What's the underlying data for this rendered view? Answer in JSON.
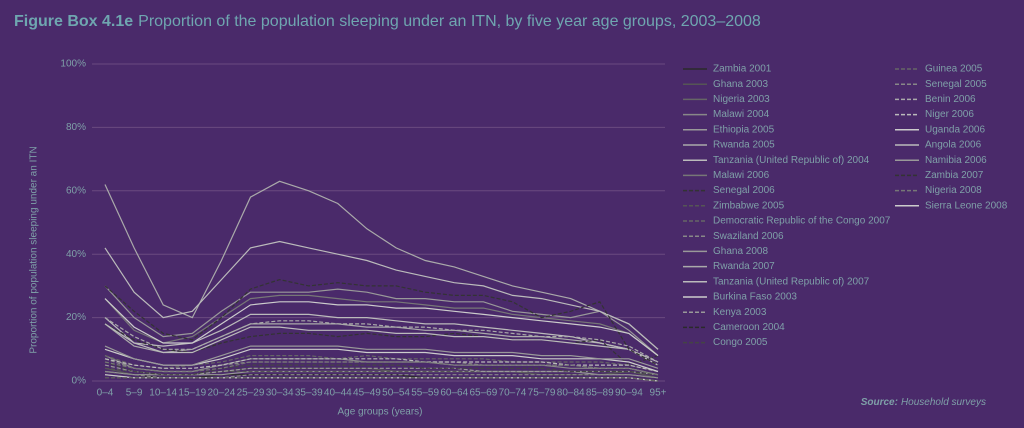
{
  "chart_data": {
    "type": "line",
    "title_prefix": "Figure Box 4.1e",
    "title": "Proportion of the population sleeping under an ITN, by five year age groups, 2003–2008",
    "y_label": "Proportion of population sleeping under an ITN",
    "x_label": "Age groups (years)",
    "source_label": "Source:",
    "source": "Household surveys",
    "grid": true,
    "ylim": [
      0,
      100
    ],
    "yticks": [
      {
        "value": 0,
        "label": "0%"
      },
      {
        "value": 20,
        "label": "20%"
      },
      {
        "value": 40,
        "label": "40%"
      },
      {
        "value": 60,
        "label": "60%"
      },
      {
        "value": 80,
        "label": "80%"
      },
      {
        "value": 100,
        "label": "100%"
      }
    ],
    "categories": [
      "0–4",
      "5–9",
      "10–14",
      "15–19",
      "20–24",
      "25–29",
      "30–34",
      "35–39",
      "40–44",
      "45–49",
      "50–54",
      "55–59",
      "60–64",
      "65–69",
      "70–74",
      "75–79",
      "80–84",
      "85–89",
      "90–94",
      "95+"
    ],
    "series": [
      {
        "name": "Zambia 2001",
        "color": "#2a2a2a",
        "dash": false,
        "values": [
          3,
          2,
          1,
          1,
          2,
          2,
          2,
          2,
          2,
          2,
          2,
          1,
          1,
          1,
          1,
          1,
          1,
          1,
          1,
          0
        ]
      },
      {
        "name": "Ghana 2003",
        "color": "#555555",
        "dash": false,
        "values": [
          4,
          2,
          2,
          2,
          3,
          4,
          4,
          4,
          4,
          4,
          3,
          3,
          3,
          3,
          3,
          2,
          2,
          2,
          3,
          1
        ]
      },
      {
        "name": "Nigeria 2003",
        "color": "#666666",
        "dash": false,
        "values": [
          2,
          1,
          1,
          1,
          1,
          1,
          1,
          1,
          1,
          1,
          1,
          1,
          1,
          1,
          1,
          1,
          1,
          1,
          1,
          0
        ]
      },
      {
        "name": "Malawi 2004",
        "color": "#888888",
        "dash": false,
        "values": [
          8,
          4,
          3,
          3,
          5,
          7,
          7,
          7,
          7,
          6,
          6,
          6,
          5,
          5,
          5,
          5,
          4,
          4,
          4,
          2
        ]
      },
      {
        "name": "Ethiopia 2005",
        "color": "#999999",
        "dash": false,
        "values": [
          3,
          2,
          2,
          2,
          2,
          3,
          3,
          3,
          3,
          3,
          3,
          3,
          3,
          3,
          3,
          3,
          3,
          2,
          2,
          1
        ]
      },
      {
        "name": "Rwanda 2005",
        "color": "#aaaaaa",
        "dash": false,
        "values": [
          18,
          11,
          9,
          10,
          14,
          18,
          18,
          18,
          18,
          17,
          17,
          16,
          16,
          15,
          14,
          14,
          13,
          12,
          10,
          5
        ]
      },
      {
        "name": "Tanzania (United Republic of) 2004",
        "color": "#bbbbbb",
        "dash": false,
        "values": [
          20,
          12,
          11,
          12,
          16,
          21,
          21,
          21,
          20,
          20,
          19,
          18,
          18,
          17,
          16,
          15,
          14,
          12,
          10,
          6
        ]
      },
      {
        "name": "Malawi 2006",
        "color": "#777777",
        "dash": false,
        "values": [
          26,
          16,
          12,
          14,
          20,
          26,
          27,
          27,
          26,
          25,
          25,
          24,
          23,
          23,
          21,
          20,
          19,
          18,
          15,
          8
        ]
      },
      {
        "name": "Senegal 2006",
        "color": "#333333",
        "dash": true,
        "values": [
          18,
          13,
          10,
          9,
          12,
          14,
          15,
          15,
          14,
          15,
          14,
          14,
          15,
          14,
          13,
          13,
          12,
          13,
          5,
          8
        ]
      },
      {
        "name": "Zimbabwe 2005",
        "color": "#555555",
        "dash": true,
        "values": [
          4,
          3,
          2,
          2,
          3,
          3,
          3,
          3,
          3,
          3,
          3,
          3,
          3,
          3,
          3,
          3,
          3,
          3,
          3,
          2
        ]
      },
      {
        "name": "Democratic Republic of the Congo 2007",
        "color": "#666666",
        "dash": true,
        "values": [
          8,
          5,
          4,
          5,
          6,
          8,
          8,
          8,
          7,
          8,
          7,
          7,
          7,
          7,
          6,
          6,
          6,
          6,
          5,
          3
        ]
      },
      {
        "name": "Swaziland 2006",
        "color": "#888888",
        "dash": true,
        "values": [
          3,
          2,
          1,
          1,
          1,
          2,
          2,
          2,
          2,
          2,
          2,
          2,
          2,
          2,
          2,
          2,
          2,
          2,
          2,
          1
        ]
      },
      {
        "name": "Ghana 2008",
        "color": "#999999",
        "dash": false,
        "values": [
          30,
          20,
          14,
          15,
          22,
          28,
          28,
          28,
          29,
          28,
          26,
          26,
          25,
          25,
          22,
          21,
          20,
          22,
          16,
          8
        ]
      },
      {
        "name": "Rwanda 2007",
        "color": "#aaaaaa",
        "dash": false,
        "values": [
          62,
          42,
          24,
          20,
          38,
          58,
          63,
          60,
          56,
          48,
          42,
          38,
          36,
          33,
          30,
          28,
          26,
          22,
          18,
          10
        ]
      },
      {
        "name": "Tanzania (United Republic of) 2007",
        "color": "#bbbbbb",
        "dash": false,
        "values": [
          42,
          28,
          20,
          22,
          32,
          42,
          44,
          42,
          40,
          38,
          35,
          33,
          31,
          30,
          27,
          26,
          24,
          22,
          18,
          10
        ]
      },
      {
        "name": "Burkina Faso 2003",
        "color": "#cccccc",
        "dash": false,
        "values": [
          2,
          1,
          1,
          1,
          1,
          1,
          1,
          1,
          1,
          1,
          1,
          1,
          1,
          1,
          1,
          1,
          1,
          1,
          1,
          0
        ]
      },
      {
        "name": "Kenya 2003",
        "color": "#999999",
        "dash": true,
        "values": [
          5,
          3,
          2,
          2,
          3,
          4,
          4,
          4,
          4,
          4,
          4,
          4,
          4,
          3,
          3,
          3,
          3,
          3,
          3,
          2
        ]
      },
      {
        "name": "Cameroon 2004",
        "color": "#2a2a2a",
        "dash": true,
        "values": [
          1,
          1,
          1,
          1,
          1,
          1,
          1,
          1,
          1,
          1,
          1,
          1,
          1,
          1,
          1,
          1,
          1,
          1,
          1,
          0
        ]
      },
      {
        "name": "Congo 2005",
        "color": "#444444",
        "dash": true,
        "values": [
          6,
          3,
          2,
          2,
          4,
          5,
          5,
          5,
          5,
          5,
          5,
          4,
          4,
          4,
          4,
          4,
          3,
          3,
          3,
          2
        ]
      },
      {
        "name": "Guinea 2005",
        "color": "#666666",
        "dash": true,
        "values": [
          1,
          1,
          1,
          1,
          1,
          1,
          1,
          1,
          1,
          1,
          1,
          1,
          1,
          1,
          1,
          1,
          1,
          1,
          1,
          0
        ]
      },
      {
        "name": "Senegal 2005",
        "color": "#888888",
        "dash": true,
        "values": [
          7,
          4,
          3,
          3,
          5,
          6,
          6,
          6,
          6,
          6,
          6,
          6,
          6,
          5,
          5,
          5,
          5,
          4,
          4,
          2
        ]
      },
      {
        "name": "Benin 2006",
        "color": "#aaaaaa",
        "dash": true,
        "values": [
          20,
          14,
          10,
          10,
          14,
          18,
          19,
          19,
          18,
          18,
          17,
          17,
          16,
          16,
          15,
          14,
          14,
          13,
          11,
          6
        ]
      },
      {
        "name": "Niger 2006",
        "color": "#bbbbbb",
        "dash": true,
        "values": [
          7,
          5,
          4,
          4,
          5,
          7,
          7,
          7,
          7,
          7,
          7,
          6,
          6,
          6,
          6,
          6,
          5,
          5,
          5,
          3
        ]
      },
      {
        "name": "Uganda 2006",
        "color": "#cccccc",
        "dash": false,
        "values": [
          10,
          7,
          5,
          5,
          7,
          10,
          10,
          10,
          10,
          9,
          9,
          9,
          8,
          8,
          8,
          7,
          7,
          7,
          6,
          3
        ]
      },
      {
        "name": "Angola 2006",
        "color": "#bbbbbb",
        "dash": false,
        "values": [
          18,
          12,
          9,
          9,
          13,
          17,
          17,
          16,
          16,
          16,
          15,
          15,
          14,
          14,
          13,
          13,
          12,
          11,
          10,
          5
        ]
      },
      {
        "name": "Namibia 2006",
        "color": "#999999",
        "dash": false,
        "values": [
          11,
          7,
          5,
          5,
          8,
          11,
          11,
          11,
          11,
          10,
          10,
          10,
          9,
          9,
          9,
          8,
          8,
          7,
          7,
          4
        ]
      },
      {
        "name": "Zambia 2007",
        "color": "#333333",
        "dash": true,
        "values": [
          30,
          22,
          15,
          13,
          20,
          29,
          32,
          30,
          31,
          30,
          30,
          28,
          27,
          27,
          25,
          20,
          22,
          25,
          10,
          5
        ]
      },
      {
        "name": "Nigeria 2008",
        "color": "#777777",
        "dash": true,
        "values": [
          6,
          4,
          3,
          3,
          4,
          6,
          6,
          6,
          6,
          6,
          6,
          6,
          5,
          5,
          5,
          5,
          5,
          4,
          4,
          2
        ]
      },
      {
        "name": "Sierra Leone 2008",
        "color": "#cccccc",
        "dash": false,
        "values": [
          26,
          17,
          12,
          12,
          18,
          24,
          25,
          25,
          24,
          24,
          23,
          23,
          22,
          21,
          20,
          19,
          18,
          17,
          15,
          8
        ]
      }
    ]
  }
}
